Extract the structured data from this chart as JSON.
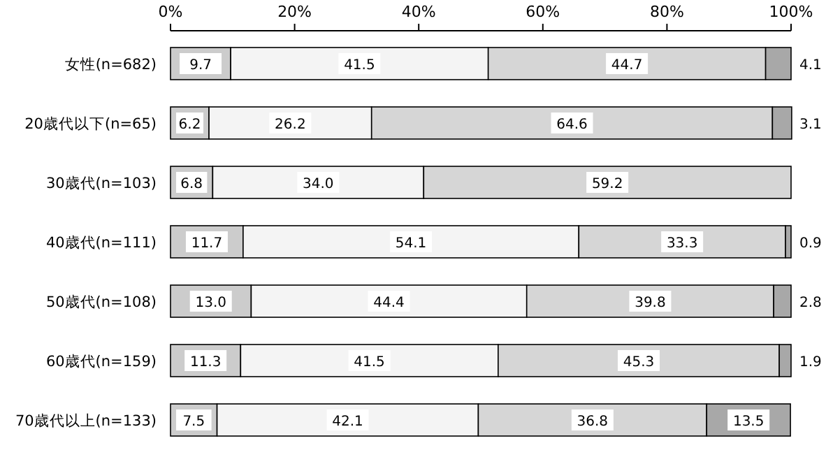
{
  "chart_data": {
    "type": "bar",
    "orientation": "horizontal",
    "stacked": true,
    "categories": [
      "女性(n=682)",
      "20歳代以下(n=65)",
      "30歳代(n=103)",
      "40歳代(n=111)",
      "50歳代(n=108)",
      "60歳代(n=159)",
      "70歳代以上(n=133)"
    ],
    "xlim": [
      0,
      100
    ],
    "xticks": [
      {
        "value": 0,
        "label": "0%"
      },
      {
        "value": 20,
        "label": "20%"
      },
      {
        "value": 40,
        "label": "40%"
      },
      {
        "value": 60,
        "label": "60%"
      },
      {
        "value": 80,
        "label": "80%"
      },
      {
        "value": 100,
        "label": "100%"
      }
    ],
    "series": [
      {
        "color": "#cccccc",
        "values": [
          9.7,
          6.2,
          6.8,
          11.7,
          13.0,
          11.3,
          7.5
        ],
        "value_labels": [
          "9.7",
          "6.2",
          "6.8",
          "11.7",
          "13.0",
          "11.3",
          "7.5"
        ]
      },
      {
        "color": "#f4f4f4",
        "values": [
          41.5,
          26.2,
          34.0,
          54.1,
          44.4,
          41.5,
          42.1
        ],
        "value_labels": [
          "41.5",
          "26.2",
          "34.0",
          "54.1",
          "44.4",
          "41.5",
          "42.1"
        ]
      },
      {
        "color": "#d6d6d6",
        "values": [
          44.7,
          64.6,
          59.2,
          33.3,
          39.8,
          45.3,
          36.8
        ],
        "value_labels": [
          "44.7",
          "64.6",
          "59.2",
          "33.3",
          "39.8",
          "45.3",
          "36.8"
        ]
      },
      {
        "color": "#a8a8a8",
        "values": [
          4.1,
          3.1,
          null,
          0.9,
          2.8,
          1.9,
          13.5
        ],
        "value_labels": [
          "4.1",
          "3.1",
          null,
          "0.9",
          "2.8",
          "1.9",
          "13.5"
        ]
      }
    ]
  }
}
